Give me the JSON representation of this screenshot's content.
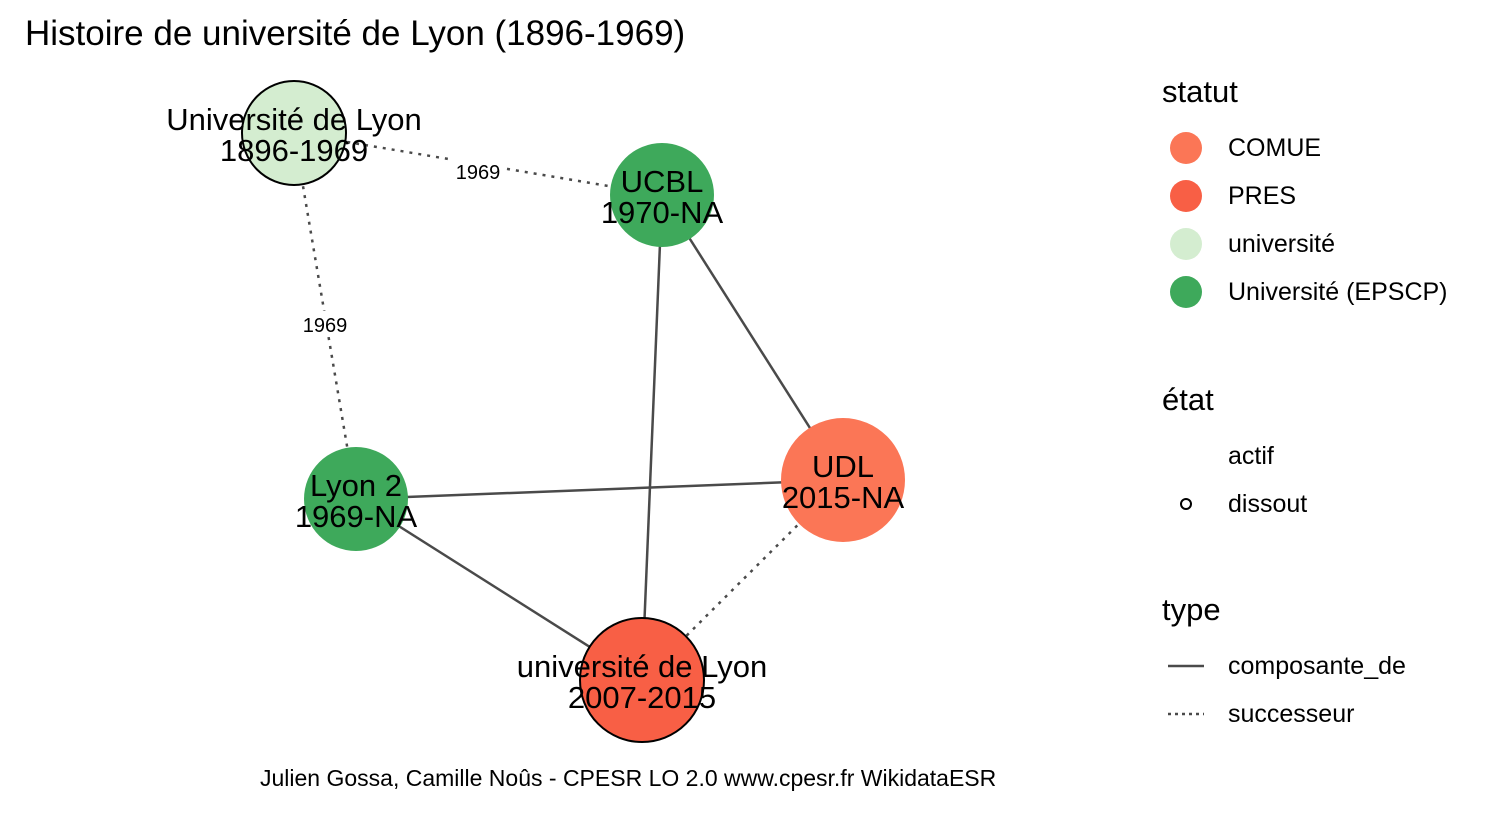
{
  "title": "Histoire de université de Lyon (1896-1969)",
  "caption": "Julien Gossa, Camille Noûs - CPESR LO 2.0 www.cpesr.fr WikidataESR",
  "colors": {
    "COMUE": "#fb7656",
    "PRES": "#f85f45",
    "universite": "#d4edd0",
    "universite_epscp": "#3ea95b",
    "edge": "#4a4a4a"
  },
  "nodes": [
    {
      "id": "univ-lyon-1896",
      "name": "Université de Lyon",
      "dates": "1896-1969",
      "statut": "université",
      "etat": "dissout"
    },
    {
      "id": "ucbl",
      "name": "UCBL",
      "dates": "1970-NA",
      "statut": "Université (EPSCP)",
      "etat": "actif"
    },
    {
      "id": "lyon2",
      "name": "Lyon 2",
      "dates": "1969-NA",
      "statut": "Université (EPSCP)",
      "etat": "actif"
    },
    {
      "id": "udl",
      "name": "UDL",
      "dates": "2015-NA",
      "statut": "COMUE",
      "etat": "actif"
    },
    {
      "id": "univ-lyon-2007",
      "name": "université de Lyon",
      "dates": "2007-2015",
      "statut": "PRES",
      "etat": "dissout"
    }
  ],
  "edges": [
    {
      "from": "univ-lyon-1896",
      "to": "ucbl",
      "type": "successeur",
      "label": "1969"
    },
    {
      "from": "univ-lyon-1896",
      "to": "lyon2",
      "type": "successeur",
      "label": "1969"
    },
    {
      "from": "ucbl",
      "to": "udl",
      "type": "composante_de",
      "label": ""
    },
    {
      "from": "ucbl",
      "to": "univ-lyon-2007",
      "type": "composante_de",
      "label": ""
    },
    {
      "from": "lyon2",
      "to": "udl",
      "type": "composante_de",
      "label": ""
    },
    {
      "from": "lyon2",
      "to": "univ-lyon-2007",
      "type": "composante_de",
      "label": ""
    },
    {
      "from": "univ-lyon-2007",
      "to": "udl",
      "type": "successeur",
      "label": ""
    }
  ],
  "legend": {
    "statut": {
      "title": "statut",
      "items": [
        {
          "label": "COMUE",
          "color": "#fb7656"
        },
        {
          "label": "PRES",
          "color": "#f85f45"
        },
        {
          "label": "université",
          "color": "#d4edd0"
        },
        {
          "label": "Université (EPSCP)",
          "color": "#3ea95b"
        }
      ]
    },
    "etat": {
      "title": "état",
      "items": [
        {
          "label": "actif"
        },
        {
          "label": "dissout"
        }
      ]
    },
    "type": {
      "title": "type",
      "items": [
        {
          "label": "composante_de"
        },
        {
          "label": "successeur"
        }
      ]
    }
  }
}
